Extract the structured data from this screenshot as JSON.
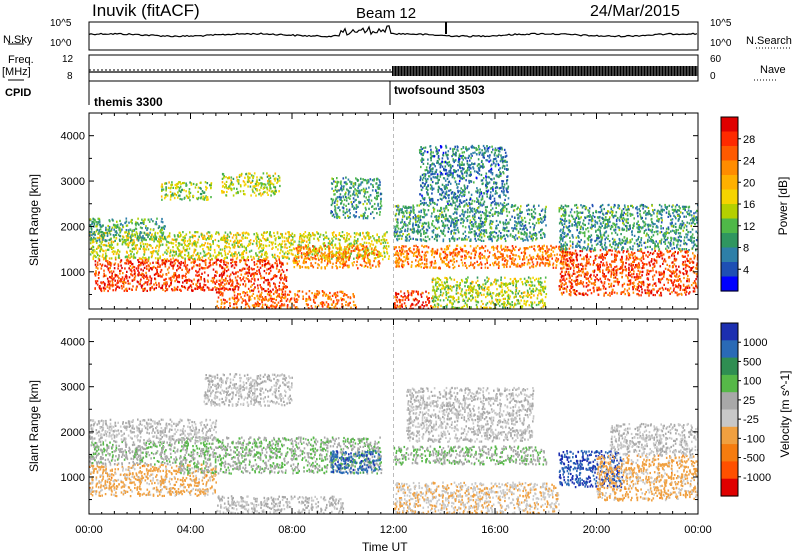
{
  "header": {
    "station": "Inuvik (fitACF)",
    "beam": "Beam 12",
    "date": "24/Mar/2015"
  },
  "side_labels": {
    "nsky": "N.Sky",
    "freq_line1": "Freq.",
    "freq_line2": "[MHz]",
    "cpid": "CPID",
    "nsearch": "N.Search",
    "nave": "Nave"
  },
  "noise_axis": {
    "left_ticks": [
      "10^5",
      "10^0"
    ],
    "right_ticks": [
      "10^5",
      "10^0"
    ]
  },
  "freq_axis": {
    "left_ticks": [
      "12",
      "8"
    ],
    "right_ticks": [
      "60",
      "0"
    ]
  },
  "cpid_segments": [
    {
      "label": "themis 3300",
      "start_hour": 0
    },
    {
      "label": "twofsound 3503",
      "start_hour": 12
    }
  ],
  "chart_data": [
    {
      "type": "heatmap",
      "title": "",
      "xlabel": "Time UT",
      "ylabel": "Slant Range [km]",
      "x_ticks": [
        "00:00",
        "04:00",
        "08:00",
        "12:00",
        "16:00",
        "20:00",
        "00:00"
      ],
      "xlim_hours": [
        0,
        24
      ],
      "ylim_km": [
        180,
        4500
      ],
      "y_ticks": [
        1000,
        2000,
        3000,
        4000
      ],
      "colorbar": {
        "label": "Power [dB]",
        "ticks": [
          "28",
          "24",
          "20",
          "16",
          "12",
          "8",
          "4"
        ],
        "colors": [
          "#e00000",
          "#ff2a00",
          "#ff5a00",
          "#ff8c00",
          "#ffb000",
          "#f5d400",
          "#b4d000",
          "#4fb848",
          "#2f9660",
          "#2e7fa8",
          "#1e4fb4",
          "#0000ff"
        ]
      },
      "regions": [
        {
          "t0": 0.2,
          "t1": 7.8,
          "r0": 600,
          "r1": 1300,
          "value": 27
        },
        {
          "t0": 0.0,
          "t1": 11.8,
          "r0": 1300,
          "r1": 1900,
          "value": 15
        },
        {
          "t0": 0.0,
          "t1": 3.0,
          "r0": 1700,
          "r1": 2200,
          "value": 9
        },
        {
          "t0": 5.2,
          "t1": 7.5,
          "r0": 2700,
          "r1": 3200,
          "value": 14
        },
        {
          "t0": 2.8,
          "t1": 4.8,
          "r0": 2600,
          "r1": 3000,
          "value": 13
        },
        {
          "t0": 8.0,
          "t1": 11.5,
          "r0": 1100,
          "r1": 1600,
          "value": 22
        },
        {
          "t0": 9.5,
          "t1": 11.5,
          "r0": 2200,
          "r1": 3100,
          "value": 8
        },
        {
          "t0": 5.0,
          "t1": 10.5,
          "r0": 200,
          "r1": 600,
          "value": 24
        },
        {
          "t0": 12.0,
          "t1": 19.0,
          "r0": 1100,
          "r1": 1600,
          "value": 23
        },
        {
          "t0": 12.0,
          "t1": 18.0,
          "r0": 1700,
          "r1": 2500,
          "value": 8
        },
        {
          "t0": 13.0,
          "t1": 16.5,
          "r0": 2500,
          "r1": 3800,
          "value": 6
        },
        {
          "t0": 12.0,
          "t1": 13.5,
          "r0": 200,
          "r1": 600,
          "value": 27
        },
        {
          "t0": 13.5,
          "t1": 18.0,
          "r0": 200,
          "r1": 900,
          "value": 14
        },
        {
          "t0": 18.5,
          "t1": 24.0,
          "r0": 500,
          "r1": 1500,
          "value": 26
        },
        {
          "t0": 18.5,
          "t1": 24.0,
          "r0": 1500,
          "r1": 2500,
          "value": 8
        }
      ]
    },
    {
      "type": "heatmap",
      "title": "",
      "xlabel": "Time UT",
      "ylabel": "Slant Range [km]",
      "x_ticks": [
        "00:00",
        "04:00",
        "08:00",
        "12:00",
        "16:00",
        "20:00",
        "00:00"
      ],
      "xlim_hours": [
        0,
        24
      ],
      "ylim_km": [
        180,
        4500
      ],
      "y_ticks": [
        1000,
        2000,
        3000,
        4000
      ],
      "colorbar": {
        "label": "Velocity [m s^-1]",
        "ticks": [
          "1000",
          "500",
          "100",
          "25",
          "-25",
          "-100",
          "-500",
          "-1000"
        ],
        "colors": [
          "#1c2fb0",
          "#2a6ab6",
          "#2f8e52",
          "#56b848",
          "#a8a8a8",
          "#c8c8c8",
          "#f0a040",
          "#f57c10",
          "#ff5000",
          "#e00000"
        ]
      },
      "regions": [
        {
          "t0": 0.0,
          "t1": 5.0,
          "r0": 600,
          "r1": 1300,
          "value": -300
        },
        {
          "t0": 0.0,
          "t1": 3.5,
          "r0": 1300,
          "r1": 1800,
          "value": 150
        },
        {
          "t0": 3.5,
          "t1": 11.5,
          "r0": 1100,
          "r1": 1900,
          "value": 200
        },
        {
          "t0": 9.5,
          "t1": 11.5,
          "r0": 1100,
          "r1": 1600,
          "value": 800
        },
        {
          "t0": 0.0,
          "t1": 5.0,
          "r0": 1800,
          "r1": 2300,
          "value": 0
        },
        {
          "t0": 4.5,
          "t1": 8.0,
          "r0": 2600,
          "r1": 3300,
          "value": 0
        },
        {
          "t0": 5.0,
          "t1": 10.0,
          "r0": 200,
          "r1": 600,
          "value": 0
        },
        {
          "t0": 12.0,
          "t1": 18.0,
          "r0": 1300,
          "r1": 1700,
          "value": 200
        },
        {
          "t0": 12.5,
          "t1": 17.5,
          "r0": 1800,
          "r1": 3000,
          "value": 0
        },
        {
          "t0": 12.0,
          "t1": 18.5,
          "r0": 200,
          "r1": 900,
          "value": -200
        },
        {
          "t0": 18.5,
          "t1": 21.0,
          "r0": 800,
          "r1": 1600,
          "value": 900
        },
        {
          "t0": 20.0,
          "t1": 24.0,
          "r0": 500,
          "r1": 1500,
          "value": -300
        },
        {
          "t0": 20.5,
          "t1": 24.0,
          "r0": 1500,
          "r1": 2200,
          "value": 0
        }
      ]
    }
  ]
}
